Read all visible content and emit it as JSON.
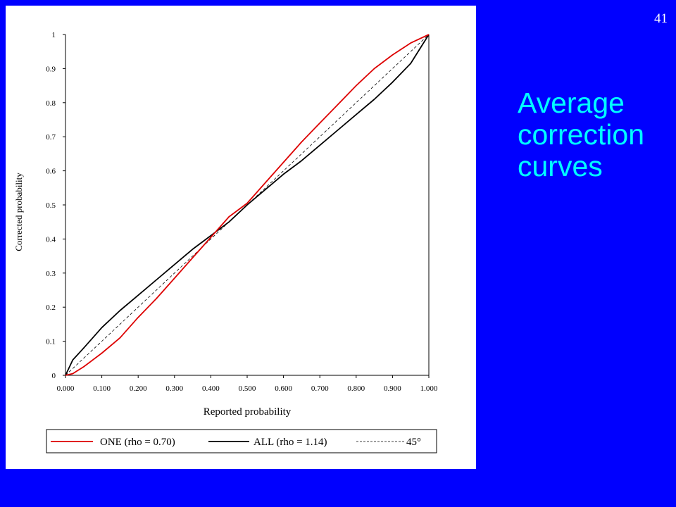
{
  "slide": {
    "number": "41",
    "title_lines": [
      "Average",
      "correction",
      "curves"
    ]
  },
  "colors": {
    "background": "#0000ff",
    "title": "#00ffff",
    "series_one": "#dd0000",
    "series_all": "#000000",
    "diagonal": "#000000"
  },
  "chart_data": {
    "type": "line",
    "title": "",
    "xlabel": "Reported probability",
    "ylabel": "Corrected probability",
    "xlim": [
      0,
      1
    ],
    "ylim": [
      0,
      1
    ],
    "xticks": [
      "0.000",
      "0.100",
      "0.200",
      "0.300",
      "0.400",
      "0.500",
      "0.600",
      "0.700",
      "0.800",
      "0.900",
      "1.000"
    ],
    "yticks": [
      "0",
      "0.1",
      "0.2",
      "0.3",
      "0.4",
      "0.5",
      "0.6",
      "0.7",
      "0.8",
      "0.9",
      "1"
    ],
    "grid": false,
    "legend_position": "bottom",
    "series": [
      {
        "name": "ONE (rho = 0.70)",
        "style": "solid",
        "x": [
          0.0,
          0.02,
          0.05,
          0.1,
          0.15,
          0.2,
          0.25,
          0.3,
          0.35,
          0.4,
          0.45,
          0.5,
          0.55,
          0.6,
          0.65,
          0.7,
          0.75,
          0.8,
          0.85,
          0.9,
          0.95,
          1.0
        ],
        "y": [
          0.0,
          0.005,
          0.025,
          0.065,
          0.11,
          0.17,
          0.225,
          0.285,
          0.345,
          0.405,
          0.465,
          0.505,
          0.565,
          0.625,
          0.685,
          0.74,
          0.795,
          0.85,
          0.9,
          0.94,
          0.975,
          1.0
        ]
      },
      {
        "name": "ALL (rho = 1.14)",
        "style": "solid",
        "x": [
          0.0,
          0.02,
          0.05,
          0.1,
          0.15,
          0.2,
          0.25,
          0.3,
          0.35,
          0.4,
          0.45,
          0.5,
          0.55,
          0.6,
          0.65,
          0.7,
          0.75,
          0.8,
          0.85,
          0.9,
          0.95,
          1.0
        ],
        "y": [
          0.0,
          0.045,
          0.08,
          0.14,
          0.19,
          0.235,
          0.28,
          0.325,
          0.37,
          0.41,
          0.45,
          0.5,
          0.545,
          0.59,
          0.63,
          0.675,
          0.72,
          0.765,
          0.81,
          0.86,
          0.915,
          1.0
        ]
      },
      {
        "name": "45°",
        "style": "dashed",
        "x": [
          0.0,
          1.0
        ],
        "y": [
          0.0,
          1.0
        ]
      }
    ]
  }
}
